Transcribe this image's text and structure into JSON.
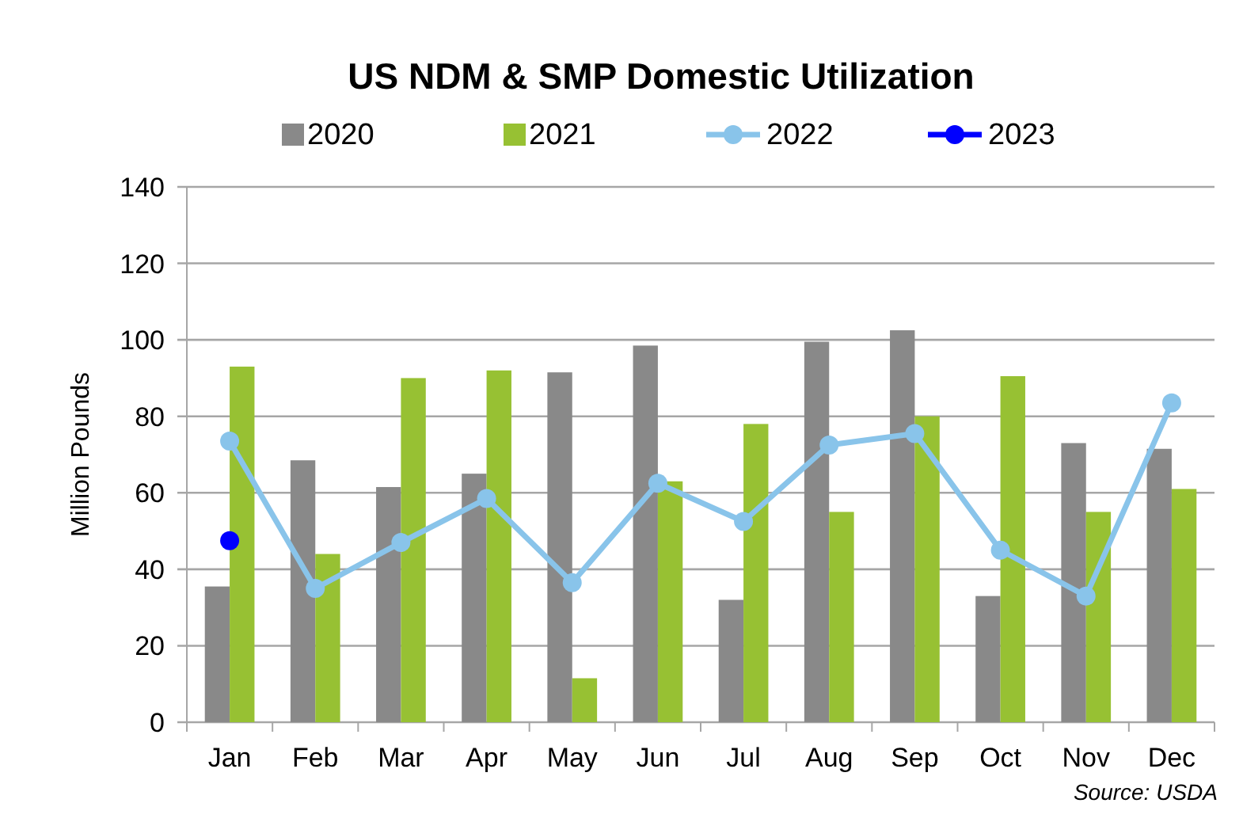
{
  "chart_data": {
    "type": "bar",
    "title": "US NDM & SMP Domestic Utilization",
    "ylabel": "Million Pounds",
    "categories": [
      "Jan",
      "Feb",
      "Mar",
      "Apr",
      "May",
      "Jun",
      "Jul",
      "Aug",
      "Sep",
      "Oct",
      "Nov",
      "Dec"
    ],
    "series": [
      {
        "name": "2020",
        "color": "#898989",
        "values": [
          35.5,
          68.5,
          61.5,
          65,
          91.5,
          98.5,
          32,
          99.5,
          102.5,
          33,
          73,
          71.5
        ]
      },
      {
        "name": "2021",
        "color": "#97c133",
        "values": [
          93,
          44,
          90,
          92,
          11.5,
          63,
          78,
          55,
          80,
          90.5,
          55,
          61
        ]
      },
      {
        "name": "2022",
        "type": "line",
        "color": "#89c4ea",
        "values": [
          73.5,
          35,
          47,
          58.5,
          36.5,
          62.5,
          52.5,
          72.5,
          75.5,
          45,
          33,
          83.5
        ]
      },
      {
        "name": "2023",
        "type": "line",
        "color": "#0000ff",
        "values": [
          47.5,
          null,
          null,
          null,
          null,
          null,
          null,
          null,
          null,
          null,
          null,
          null
        ]
      }
    ],
    "ylim": [
      0,
      140
    ],
    "yticks": [
      0,
      20,
      40,
      60,
      80,
      100,
      120,
      140
    ],
    "grid": "y",
    "legend": "top",
    "marker": "circle",
    "line_style": "solid",
    "annotations": [
      "Source: USDA"
    ]
  }
}
